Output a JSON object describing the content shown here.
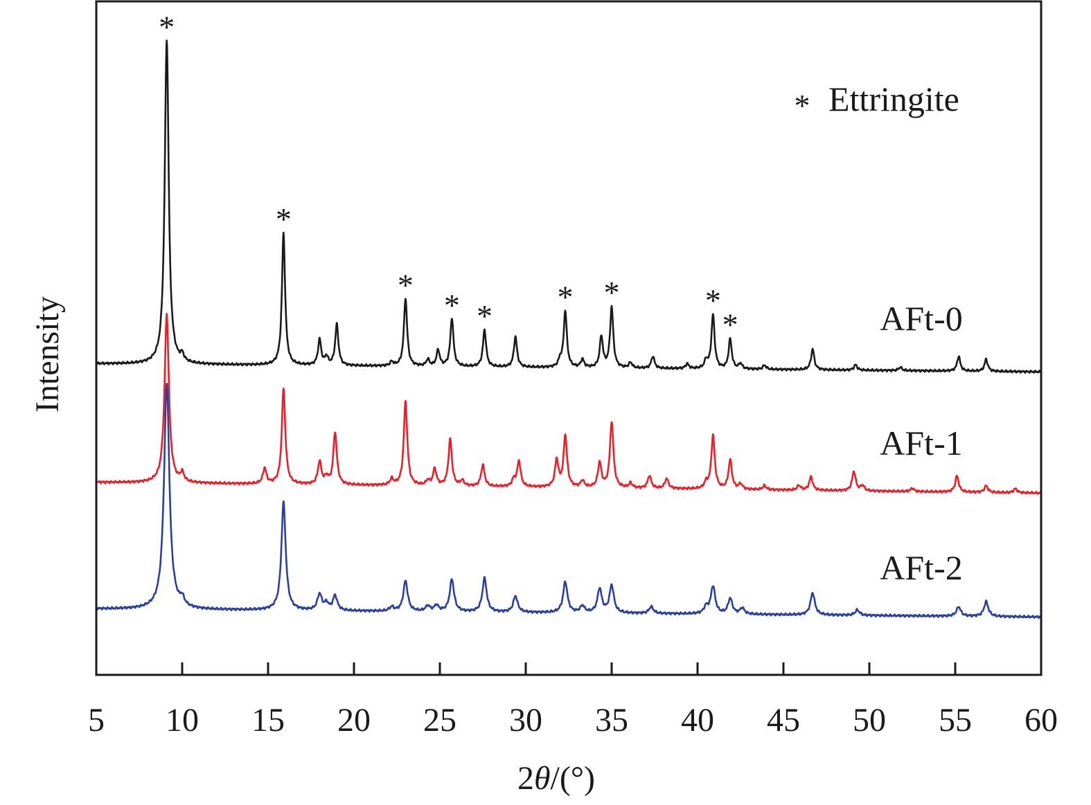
{
  "chart_data": {
    "type": "line",
    "title": "",
    "xlabel_prefix": "2",
    "xlabel_symbol": "θ",
    "xlabel_suffix": "/(°)",
    "ylabel": "Intensity",
    "xlim": [
      5,
      60
    ],
    "ylim": [
      0,
      100
    ],
    "y_units": "a.u. (arbitrary, offset-stacked)",
    "xticks": [
      5,
      10,
      15,
      20,
      25,
      30,
      35,
      40,
      45,
      50,
      55,
      60
    ],
    "xtick_labels": [
      "5",
      "10",
      "15",
      "20",
      "25",
      "30",
      "35",
      "40",
      "45",
      "50",
      "55",
      "60"
    ],
    "grid": false,
    "legend": {
      "marker": "*",
      "label": "Ettringite",
      "placement": "top-right"
    },
    "annotations": {
      "marker": "*",
      "series": "AFt-0",
      "x": [
        9.1,
        15.9,
        23.0,
        25.7,
        27.6,
        32.3,
        35.0,
        40.9,
        41.9
      ]
    },
    "series": [
      {
        "name": "AFt-0",
        "color": "#1a1a1a",
        "baseline": [
          46.2,
          45.0
        ],
        "peak_width": 0.11,
        "peaks": [
          [
            9.1,
            48.2
          ],
          [
            10.0,
            1.0
          ],
          [
            15.9,
            19.6
          ],
          [
            18.0,
            3.8
          ],
          [
            18.4,
            1.2
          ],
          [
            19.0,
            6.1
          ],
          [
            22.2,
            0.6
          ],
          [
            23.0,
            10.1
          ],
          [
            24.3,
            1.0
          ],
          [
            24.9,
            2.4
          ],
          [
            25.7,
            7.2
          ],
          [
            27.6,
            5.5
          ],
          [
            29.4,
            4.5
          ],
          [
            32.0,
            1.0
          ],
          [
            32.3,
            8.4
          ],
          [
            33.3,
            1.2
          ],
          [
            34.4,
            4.6
          ],
          [
            35.0,
            9.0
          ],
          [
            36.1,
            0.8
          ],
          [
            37.4,
            1.8
          ],
          [
            39.4,
            0.7
          ],
          [
            40.5,
            1.2
          ],
          [
            40.9,
            8.0
          ],
          [
            41.9,
            4.4
          ],
          [
            42.5,
            0.8
          ],
          [
            43.9,
            0.6
          ],
          [
            46.7,
            3.1
          ],
          [
            49.2,
            0.8
          ],
          [
            51.8,
            0.5
          ],
          [
            55.2,
            2.2
          ],
          [
            56.8,
            1.8
          ]
        ]
      },
      {
        "name": "AFt-1",
        "color": "#e8202a",
        "baseline": [
          28.6,
          27.0
        ],
        "peak_width": 0.12,
        "peaks": [
          [
            9.1,
            25.0
          ],
          [
            10.0,
            1.3
          ],
          [
            14.8,
            2.3
          ],
          [
            15.9,
            14.2
          ],
          [
            18.0,
            3.4
          ],
          [
            18.4,
            1.0
          ],
          [
            18.9,
            7.8
          ],
          [
            22.2,
            0.9
          ],
          [
            23.0,
            12.5
          ],
          [
            24.3,
            0.7
          ],
          [
            24.7,
            2.5
          ],
          [
            25.6,
            6.9
          ],
          [
            26.3,
            0.8
          ],
          [
            27.5,
            3.2
          ],
          [
            29.3,
            1.0
          ],
          [
            29.6,
            3.8
          ],
          [
            31.8,
            4.0
          ],
          [
            32.3,
            7.7
          ],
          [
            33.3,
            1.0
          ],
          [
            34.3,
            3.7
          ],
          [
            35.0,
            9.8
          ],
          [
            36.1,
            0.7
          ],
          [
            37.2,
            1.9
          ],
          [
            38.2,
            1.5
          ],
          [
            40.5,
            0.9
          ],
          [
            40.9,
            7.9
          ],
          [
            41.9,
            4.3
          ],
          [
            42.5,
            0.8
          ],
          [
            43.9,
            0.6
          ],
          [
            45.9,
            0.7
          ],
          [
            46.6,
            2.0
          ],
          [
            49.1,
            2.9
          ],
          [
            49.6,
            0.8
          ],
          [
            52.5,
            0.5
          ],
          [
            55.1,
            2.4
          ],
          [
            56.8,
            1.0
          ],
          [
            58.5,
            0.6
          ]
        ]
      },
      {
        "name": "AFt-2",
        "color": "#2b3fa0",
        "baseline": [
          9.8,
          8.6
        ],
        "peak_width": 0.15,
        "peaks": [
          [
            9.1,
            33.5
          ],
          [
            10.0,
            1.1
          ],
          [
            15.9,
            16.0
          ],
          [
            18.0,
            2.4
          ],
          [
            18.4,
            1.0
          ],
          [
            18.9,
            2.2
          ],
          [
            22.2,
            0.6
          ],
          [
            23.0,
            4.5
          ],
          [
            24.3,
            0.8
          ],
          [
            24.8,
            0.9
          ],
          [
            25.7,
            4.8
          ],
          [
            27.6,
            5.0
          ],
          [
            29.4,
            2.4
          ],
          [
            32.3,
            4.6
          ],
          [
            33.3,
            1.0
          ],
          [
            34.3,
            3.6
          ],
          [
            35.0,
            4.1
          ],
          [
            37.3,
            1.0
          ],
          [
            40.5,
            1.0
          ],
          [
            40.9,
            4.1
          ],
          [
            41.9,
            2.3
          ],
          [
            42.6,
            0.9
          ],
          [
            46.7,
            3.3
          ],
          [
            49.3,
            0.8
          ],
          [
            55.2,
            1.4
          ],
          [
            56.8,
            2.2
          ]
        ]
      }
    ]
  }
}
